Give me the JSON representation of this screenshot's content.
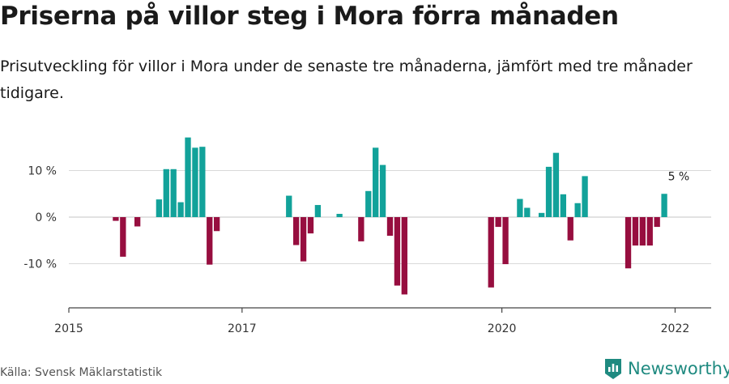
{
  "header": {
    "title": "Priserna på villor steg i Mora förra månaden",
    "subtitle": "Prisutveckling för villor i Mora under de senaste tre månaderna, jämfört med tre månader tidigare."
  },
  "footer": {
    "source": "Källa: Svensk Mäklarstatistik",
    "brand": "Newsworthy"
  },
  "colors": {
    "positive": "#12a29a",
    "negative": "#970e3f",
    "grid": "#d9d9d9",
    "axis": "#444444",
    "brand": "#1f8a80"
  },
  "chart_data": {
    "type": "bar",
    "x_unit": "month",
    "x_range": [
      "2015-01",
      "2022-06"
    ],
    "xticks": [
      {
        "label": "2015",
        "x": "2015-01"
      },
      {
        "label": "2017",
        "x": "2017-01"
      },
      {
        "label": "2020",
        "x": "2020-01"
      },
      {
        "label": "2022",
        "x": "2022-01"
      }
    ],
    "yticks": [
      {
        "label": "10 %",
        "y": 10
      },
      {
        "label": "0 %",
        "y": 0
      },
      {
        "label": "-10 %",
        "y": -10
      }
    ],
    "ylim": [
      -19,
      19
    ],
    "grid": true,
    "annotation": {
      "text": "5 %",
      "x": "2022-01"
    },
    "points": [
      {
        "x": "2015-07",
        "y": -0.8
      },
      {
        "x": "2015-08",
        "y": -8.5
      },
      {
        "x": "2015-10",
        "y": -2.0
      },
      {
        "x": "2016-01",
        "y": 3.8
      },
      {
        "x": "2016-02",
        "y": 10.3
      },
      {
        "x": "2016-03",
        "y": 10.3
      },
      {
        "x": "2016-04",
        "y": 3.2
      },
      {
        "x": "2016-05",
        "y": 17.1
      },
      {
        "x": "2016-06",
        "y": 14.9
      },
      {
        "x": "2016-07",
        "y": 15.1
      },
      {
        "x": "2016-08",
        "y": -10.2
      },
      {
        "x": "2016-09",
        "y": -3.0
      },
      {
        "x": "2017-07",
        "y": 4.6
      },
      {
        "x": "2017-08",
        "y": -6.0
      },
      {
        "x": "2017-09",
        "y": -9.5
      },
      {
        "x": "2017-10",
        "y": -3.5
      },
      {
        "x": "2017-11",
        "y": 2.6
      },
      {
        "x": "2018-02",
        "y": 0.7
      },
      {
        "x": "2018-05",
        "y": -5.2
      },
      {
        "x": "2018-06",
        "y": 5.6
      },
      {
        "x": "2018-07",
        "y": 14.9
      },
      {
        "x": "2018-08",
        "y": 11.2
      },
      {
        "x": "2018-09",
        "y": -4.0
      },
      {
        "x": "2018-10",
        "y": -14.7
      },
      {
        "x": "2018-11",
        "y": -16.6
      },
      {
        "x": "2019-11",
        "y": -15.1
      },
      {
        "x": "2019-12",
        "y": -2.1
      },
      {
        "x": "2020-01",
        "y": -10.1
      },
      {
        "x": "2020-03",
        "y": 3.9
      },
      {
        "x": "2020-04",
        "y": 2.0
      },
      {
        "x": "2020-06",
        "y": 0.9
      },
      {
        "x": "2020-07",
        "y": 10.8
      },
      {
        "x": "2020-08",
        "y": 13.8
      },
      {
        "x": "2020-09",
        "y": 4.9
      },
      {
        "x": "2020-10",
        "y": -5.0
      },
      {
        "x": "2020-11",
        "y": 3.0
      },
      {
        "x": "2020-12",
        "y": 8.8
      },
      {
        "x": "2021-06",
        "y": -11.0
      },
      {
        "x": "2021-07",
        "y": -6.1
      },
      {
        "x": "2021-08",
        "y": -6.1
      },
      {
        "x": "2021-09",
        "y": -6.1
      },
      {
        "x": "2021-10",
        "y": -2.1
      },
      {
        "x": "2021-11",
        "y": 5.0
      }
    ]
  }
}
